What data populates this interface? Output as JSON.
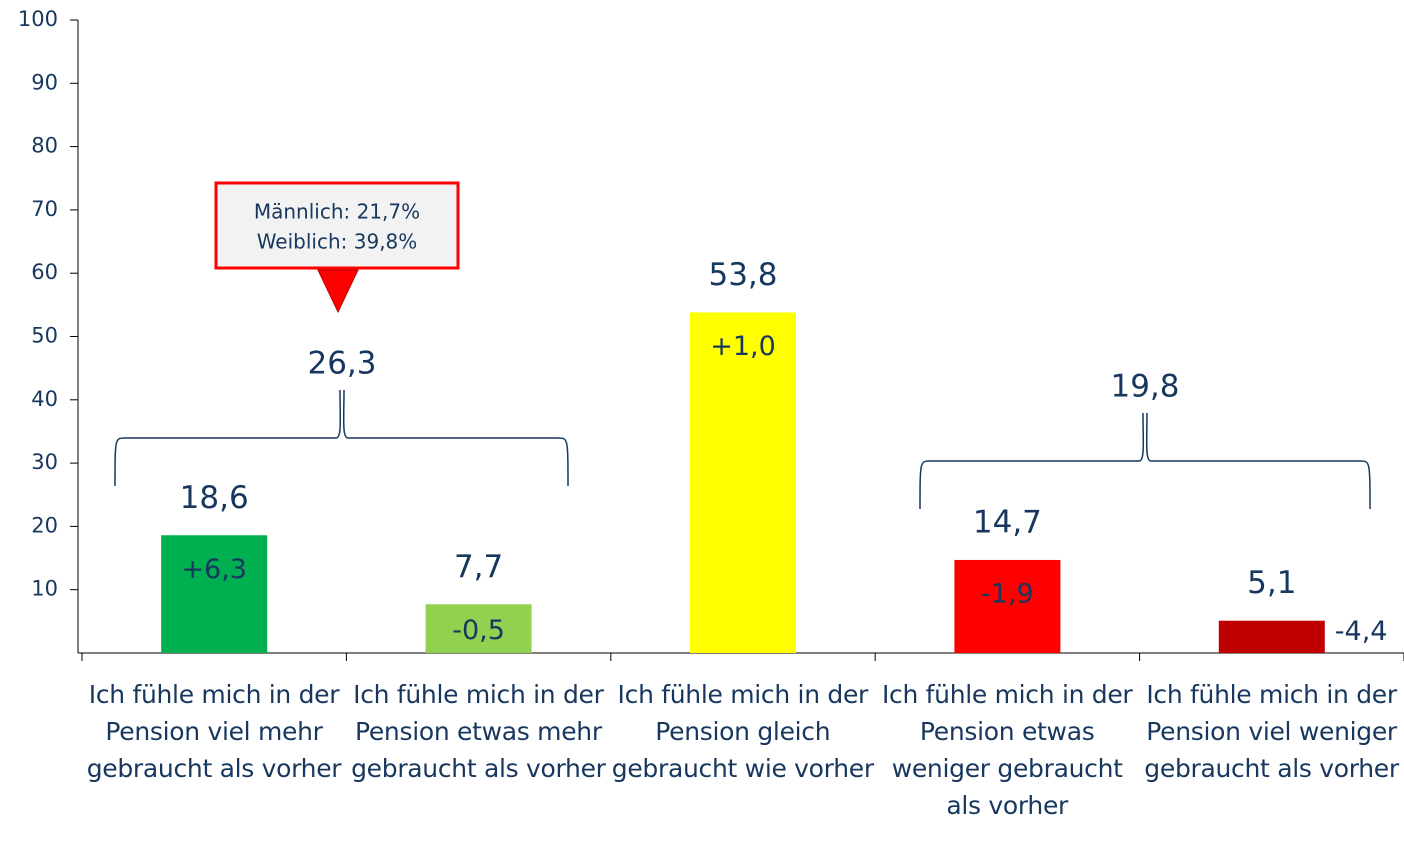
{
  "chart_data": {
    "type": "bar",
    "categories": [
      "Ich fühle mich in der Pension viel mehr gebraucht als vorher",
      "Ich fühle mich in der Pension etwas mehr gebraucht als vorher",
      "Ich fühle mich in der Pension gleich gebraucht wie vorher",
      "Ich fühle mich in der Pension etwas weniger gebraucht als vorher",
      "Ich fühle mich in der Pension viel weniger gebraucht als vorher"
    ],
    "values": [
      18.6,
      7.7,
      53.8,
      14.7,
      5.1
    ],
    "value_labels": [
      "18,6",
      "7,7",
      "53,8",
      "14,7",
      "5,1"
    ],
    "changes": [
      6.3,
      -0.5,
      1.0,
      -1.9,
      -4.4
    ],
    "change_labels": [
      "+6,3",
      "-0,5",
      "+1,0",
      "-1,9",
      "-4,4"
    ],
    "colors": [
      "#00b050",
      "#92d050",
      "#ffff00",
      "#ff0000",
      "#c00000"
    ],
    "groups": [
      {
        "value": 26.3,
        "label": "26,3"
      },
      {
        "value": 19.8,
        "label": "19,8"
      }
    ],
    "annotation": [
      "Männlich: 21,7%",
      "Weiblich: 39,8%"
    ],
    "ylim": [
      0,
      100
    ],
    "yticks": [
      10,
      20,
      30,
      40,
      50,
      60,
      70,
      80,
      90,
      100
    ],
    "grid": false
  }
}
